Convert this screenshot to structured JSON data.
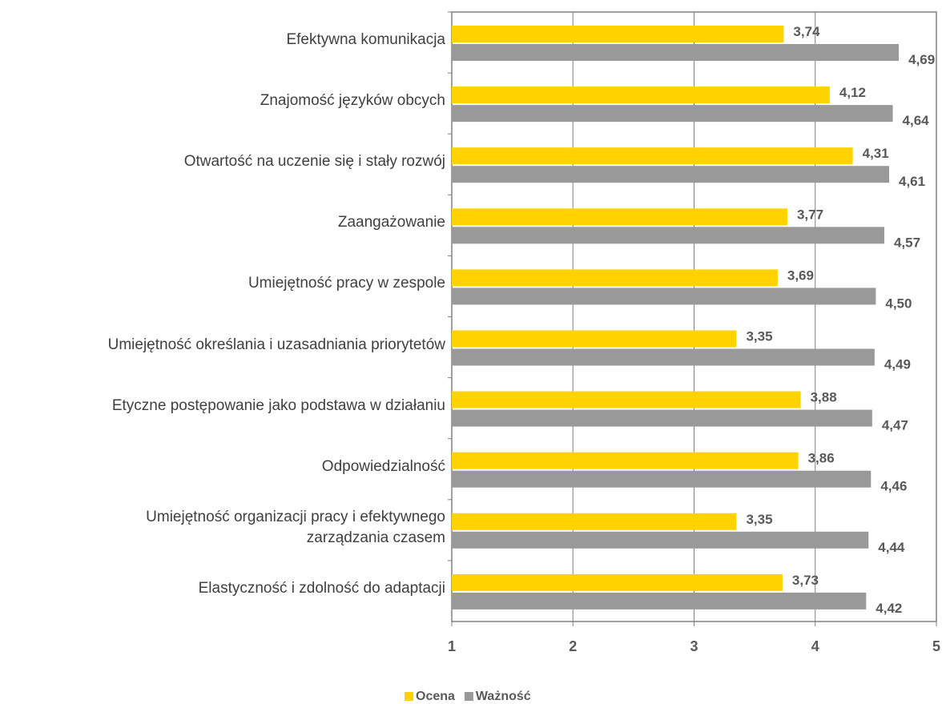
{
  "chart_data": {
    "type": "bar",
    "orientation": "horizontal",
    "categories": [
      "Efektywna komunikacja",
      "Znajomość języków obcych",
      "Otwartość na uczenie się i stały rozwój",
      "Zaangażowanie",
      "Umiejętność pracy w zespole",
      "Umiejętność określania i uzasadniania priorytetów",
      "Etyczne postępowanie jako podstawa w działaniu",
      "Odpowiedzialność",
      "Umiejętność organizacji pracy i efektywnego\nzarządzania czasem",
      "Elastyczność i zdolność do adaptacji"
    ],
    "series": [
      {
        "name": "Ocena",
        "color": "#ffd200",
        "values": [
          3.74,
          4.12,
          4.31,
          3.77,
          3.69,
          3.35,
          3.88,
          3.86,
          3.35,
          3.73
        ],
        "value_labels": [
          "3,74",
          "4,12",
          "4,31",
          "3,77",
          "3,69",
          "3,35",
          "3,88",
          "3,86",
          "3,35",
          "3,73"
        ]
      },
      {
        "name": "Ważność",
        "color": "#999999",
        "values": [
          4.69,
          4.64,
          4.61,
          4.57,
          4.5,
          4.49,
          4.47,
          4.46,
          4.44,
          4.42
        ],
        "value_labels": [
          "4,69",
          "4,64",
          "4,61",
          "4,57",
          "4,50",
          "4,49",
          "4,47",
          "4,46",
          "4,44",
          "4,42"
        ]
      }
    ],
    "xlim": [
      1,
      5
    ],
    "xticks": [
      1,
      2,
      3,
      4,
      5
    ],
    "grid": true,
    "legend": "bottom"
  }
}
